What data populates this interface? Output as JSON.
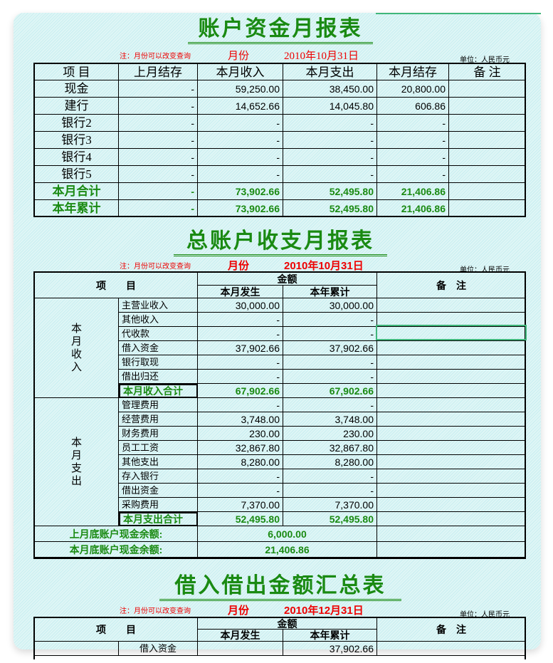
{
  "note": "注：月份可以改变查询",
  "month_label": "月份",
  "unit": "单位：人民币元",
  "report1": {
    "title": "账户资金月报表",
    "date": "2010年10月31日",
    "headers": [
      "项 目",
      "上月结存",
      "本月收入",
      "本月支出",
      "本月结存",
      "备 注"
    ],
    "rows": [
      [
        "现金",
        "-",
        "59,250.00",
        "38,450.00",
        "20,800.00",
        ""
      ],
      [
        "建行",
        "-",
        "14,652.66",
        "14,045.80",
        "606.86",
        ""
      ],
      [
        "银行2",
        "-",
        "-",
        "-",
        "-",
        ""
      ],
      [
        "银行3",
        "-",
        "-",
        "-",
        "-",
        ""
      ],
      [
        "银行4",
        "-",
        "-",
        "-",
        "-",
        ""
      ],
      [
        "银行5",
        "-",
        "-",
        "-",
        "-",
        ""
      ],
      [
        "本月合计",
        "-",
        "73,902.66",
        "52,495.80",
        "21,406.86",
        ""
      ],
      [
        "本年累计",
        "-",
        "73,902.66",
        "52,495.80",
        "21,406.86",
        ""
      ]
    ]
  },
  "report2": {
    "title": "总账户收支月报表",
    "date": "2010年10月31日",
    "header_item": "项　　目",
    "header_amount": "金额",
    "header_month": "本月发生",
    "header_year": "本年累计",
    "header_remark": "备　注",
    "income_group": "本月收入",
    "income": [
      [
        "主营业收入",
        "30,000.00",
        "30,000.00"
      ],
      [
        "其他收入",
        "-",
        "-"
      ],
      [
        "代收款",
        "-",
        "-"
      ],
      [
        "借入资金",
        "37,902.66",
        "37,902.66"
      ],
      [
        "银行取现",
        "-",
        "-"
      ],
      [
        "借出归还",
        "-",
        "-"
      ],
      [
        "本月收入合计",
        "67,902.66",
        "67,902.66"
      ]
    ],
    "expense_group": "本月支出",
    "expense": [
      [
        "管理费用",
        "-",
        "-"
      ],
      [
        "经营费用",
        "3,748.00",
        "3,748.00"
      ],
      [
        "财务费用",
        "230.00",
        "230.00"
      ],
      [
        "员工工资",
        "32,867.80",
        "32,867.80"
      ],
      [
        "其他支出",
        "8,280.00",
        "8,280.00"
      ],
      [
        "存入银行",
        "-",
        "-"
      ],
      [
        "借出资金",
        "-",
        "-"
      ],
      [
        "采购费用",
        "7,370.00",
        "7,370.00"
      ],
      [
        "本月支出合计",
        "52,495.80",
        "52,495.80"
      ]
    ],
    "last_balance_label": "上月底账户现金余额:",
    "last_balance": "6,000.00",
    "this_balance_label": "本月底账户现金余额:",
    "this_balance": "21,406.86"
  },
  "report3": {
    "title": "借入借出金额汇总表",
    "date": "2010年12月31日",
    "header_item": "项　　目",
    "header_amount": "金额",
    "header_month": "本月发生",
    "header_year": "本年累计",
    "header_remark": "备　注",
    "rows": [
      [
        "借入资金",
        "",
        "37,902.66"
      ]
    ]
  }
}
